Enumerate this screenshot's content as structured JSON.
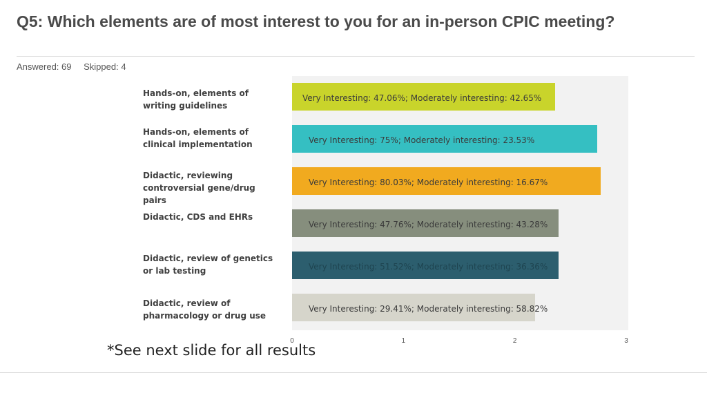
{
  "header": {
    "title": "Q5: Which elements are of most interest to you for an in-person CPIC meeting?",
    "answered": "Answered: 69",
    "skipped": "Skipped: 4"
  },
  "footer": {
    "note": "*See next slide for all results"
  },
  "colors": {
    "bars": [
      "#c9d42b",
      "#35bfc2",
      "#f1aa1f",
      "#868e7d",
      "#2c5e6e",
      "#d6d5cb"
    ],
    "plot_bg": "#f2f2f2"
  },
  "chart_data": {
    "type": "bar",
    "orientation": "horizontal",
    "categories": [
      "Hands-on, elements of writing guidelines",
      "Hands-on, elements of clinical implementation",
      "Didactic, reviewing controversial gene/drug pairs",
      "Didactic, CDS and EHRs",
      "Didactic, review of genetics or lab testing",
      "Didactic, review of pharmacology or drug use"
    ],
    "values": [
      2.36,
      2.74,
      2.77,
      2.39,
      2.39,
      2.18
    ],
    "data_labels": [
      "Very Interesting: 47.06%; Moderately interesting: 42.65%",
      "Very Interesting: 75%; Moderately interesting: 23.53%",
      "Very Interesting: 80.03%; Moderately interesting: 16.67%",
      "Very Interesting: 47.76%; Moderately interesting: 43.28%",
      "Very Interesting: 51.52%; Moderately interesting: 36.36%",
      "Very Interesting: 29.41%; Moderately interesting: 58.82%"
    ],
    "xlim": [
      0,
      3
    ],
    "xticks": [
      "0",
      "1",
      "2",
      "3"
    ],
    "grid": false,
    "title": "",
    "xlabel": "",
    "ylabel": ""
  }
}
